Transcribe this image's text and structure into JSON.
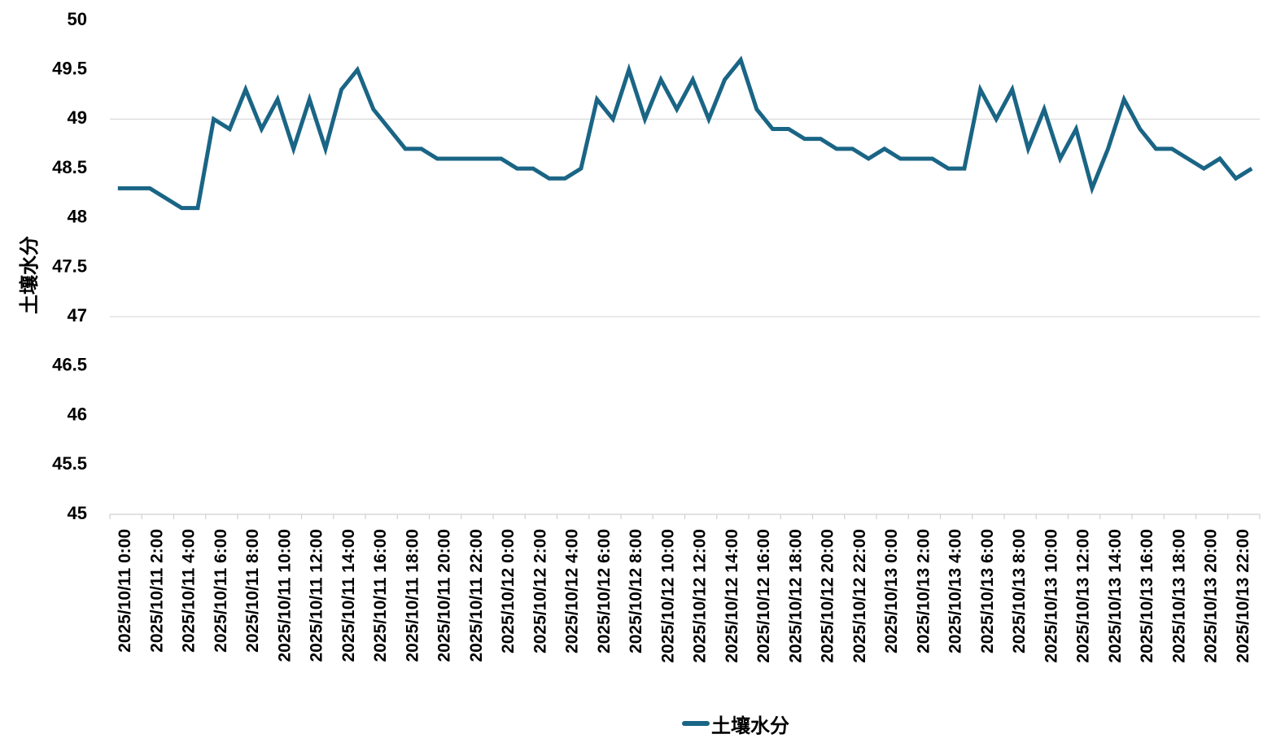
{
  "chart_data": {
    "type": "line",
    "title": "",
    "xlabel": "",
    "ylabel": "土壤水分",
    "ylim": [
      45,
      50
    ],
    "y_ticks": [
      "45",
      "45.5",
      "46",
      "46.5",
      "47",
      "47.5",
      "48",
      "48.5",
      "49",
      "49.5",
      "50"
    ],
    "grid": "horizontal at 47 and 49",
    "legend": "bottom-center",
    "x_tick_labels": [
      "2025/10/11 0:00",
      "2025/10/11 2:00",
      "2025/10/11 4:00",
      "2025/10/11 6:00",
      "2025/10/11 8:00",
      "2025/10/11 10:00",
      "2025/10/11 12:00",
      "2025/10/11 14:00",
      "2025/10/11 16:00",
      "2025/10/11 18:00",
      "2025/10/11 20:00",
      "2025/10/11 22:00",
      "2025/10/12 0:00",
      "2025/10/12 2:00",
      "2025/10/12 4:00",
      "2025/10/12 6:00",
      "2025/10/12 8:00",
      "2025/10/12 10:00",
      "2025/10/12 12:00",
      "2025/10/12 14:00",
      "2025/10/12 16:00",
      "2025/10/12 18:00",
      "2025/10/12 20:00",
      "2025/10/12 22:00",
      "2025/10/13 0:00",
      "2025/10/13 2:00",
      "2025/10/13 4:00",
      "2025/10/13 6:00",
      "2025/10/13 8:00",
      "2025/10/13 10:00",
      "2025/10/13 12:00",
      "2025/10/13 14:00",
      "2025/10/13 16:00",
      "2025/10/13 18:00",
      "2025/10/13 20:00",
      "2025/10/13 22:00"
    ],
    "series": [
      {
        "name": "土壤水分",
        "color": "#1a6585",
        "values": [
          48.3,
          48.3,
          48.3,
          48.2,
          48.1,
          48.1,
          49.0,
          48.9,
          49.3,
          48.9,
          49.2,
          48.7,
          49.2,
          48.7,
          49.3,
          49.5,
          49.1,
          48.9,
          48.7,
          48.7,
          48.6,
          48.6,
          48.6,
          48.6,
          48.6,
          48.5,
          48.5,
          48.4,
          48.4,
          48.5,
          49.2,
          49.0,
          49.5,
          49.0,
          49.4,
          49.1,
          49.4,
          49.0,
          49.4,
          49.6,
          49.1,
          48.9,
          48.9,
          48.8,
          48.8,
          48.7,
          48.7,
          48.6,
          48.7,
          48.6,
          48.6,
          48.6,
          48.5,
          48.5,
          49.3,
          49.0,
          49.3,
          48.7,
          49.1,
          48.6,
          48.9,
          48.3,
          48.7,
          49.2,
          48.9,
          48.7,
          48.7,
          48.6,
          48.5,
          48.6,
          48.4,
          48.5
        ]
      }
    ]
  }
}
